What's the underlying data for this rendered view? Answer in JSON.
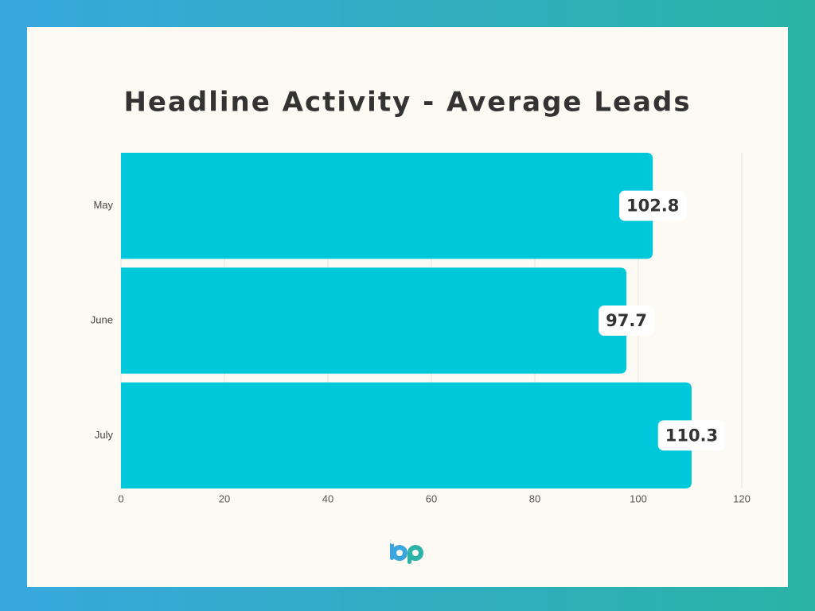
{
  "chart_data": {
    "type": "bar",
    "orientation": "horizontal",
    "title": "Headline Activity - Average Leads",
    "categories": [
      "May",
      "June",
      "July"
    ],
    "values": [
      102.8,
      97.7,
      110.3
    ],
    "color": "#00c8db",
    "xlim": [
      0,
      120
    ],
    "xticks": [
      0,
      20,
      40,
      60,
      80,
      100,
      120
    ],
    "grid": true
  }
}
